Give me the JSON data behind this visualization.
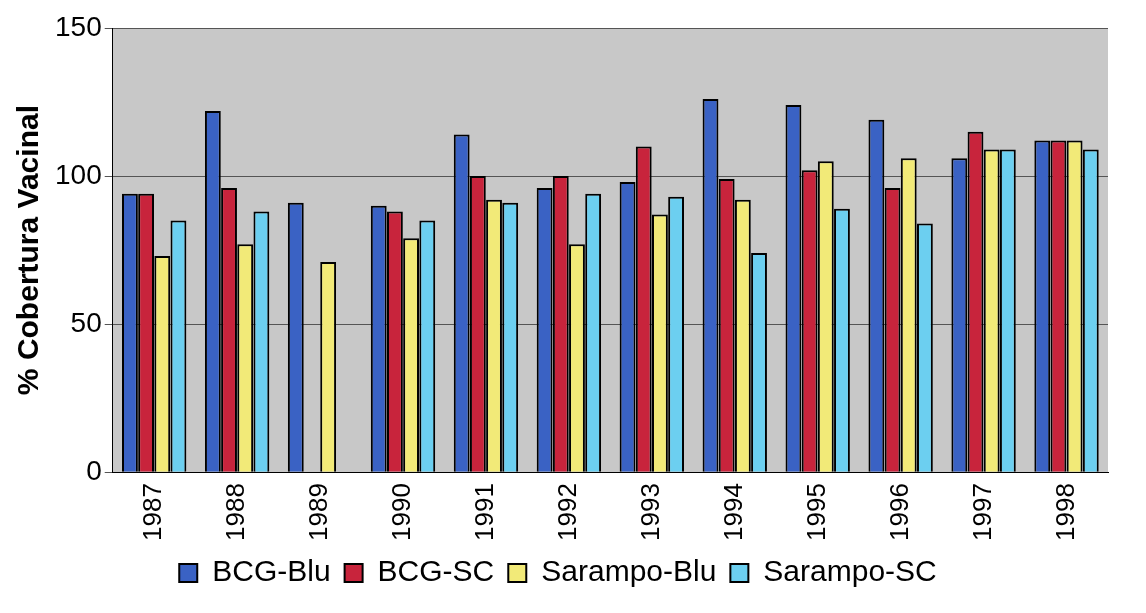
{
  "chart_data": {
    "type": "bar",
    "ylabel": "% Cobertura Vacinal",
    "categories": [
      "1987",
      "1988",
      "1989",
      "1990",
      "1991",
      "1992",
      "1993",
      "1994",
      "1995",
      "1996",
      "1997",
      "1998"
    ],
    "series": [
      {
        "name": "BCG-Blu",
        "color": "#3a62c4",
        "values": [
          94,
          122,
          91,
          90,
          114,
          96,
          98,
          126,
          124,
          119,
          106,
          112
        ]
      },
      {
        "name": "BCG-SC",
        "color": "#c8243c",
        "values": [
          94,
          96,
          null,
          88,
          100,
          100,
          110,
          99,
          102,
          96,
          115,
          112
        ]
      },
      {
        "name": "Sarampo-Blu",
        "color": "#f2ea78",
        "values": [
          73,
          77,
          71,
          79,
          92,
          77,
          87,
          92,
          105,
          106,
          109,
          112
        ]
      },
      {
        "name": "Sarampo-SC",
        "color": "#6ccff0",
        "values": [
          85,
          88,
          null,
          85,
          91,
          94,
          93,
          74,
          89,
          84,
          109,
          109
        ]
      }
    ],
    "ylim": [
      0,
      150
    ],
    "yticks": [
      0,
      50,
      100,
      150
    ],
    "grid": "y",
    "legend": "bottom"
  }
}
